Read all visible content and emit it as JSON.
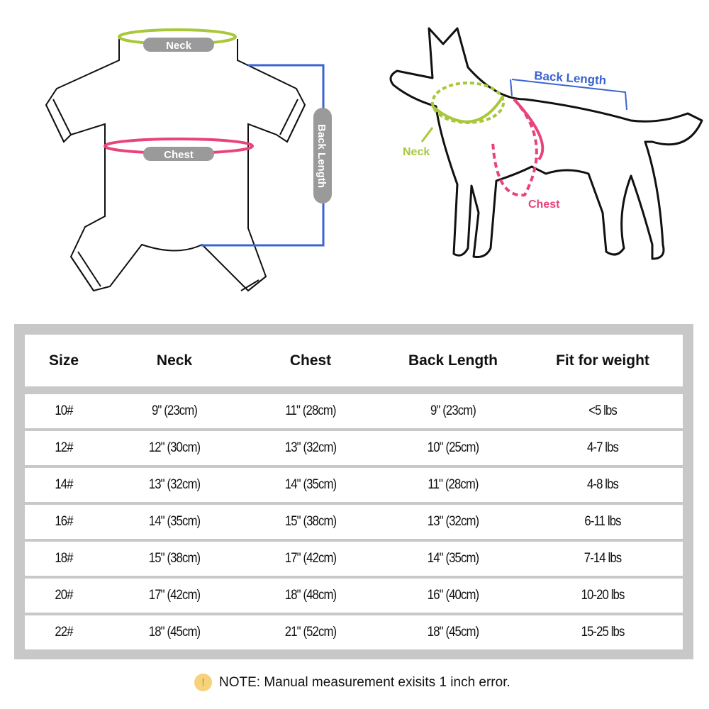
{
  "garment_labels": {
    "neck": "Neck",
    "chest": "Chest",
    "back_length": "Back Length"
  },
  "dog_labels": {
    "neck": "Neck",
    "chest": "Chest",
    "back_length": "Back Length"
  },
  "colors": {
    "neck": "#a8c83a",
    "chest": "#e8437a",
    "back_length": "#3b64d0",
    "label_pill": "#9a9a9a",
    "frame": "#c8c8c8"
  },
  "table": {
    "headers": [
      "Size",
      "Neck",
      "Chest",
      "Back Length",
      "Fit for weight"
    ],
    "rows": [
      [
        "10#",
        "9\" (23cm)",
        "11\" (28cm)",
        "9\" (23cm)",
        "<5 lbs"
      ],
      [
        "12#",
        "12\" (30cm)",
        "13\" (32cm)",
        "10\" (25cm)",
        "4-7 lbs"
      ],
      [
        "14#",
        "13\" (32cm)",
        "14\" (35cm)",
        "11\" (28cm)",
        "4-8  lbs"
      ],
      [
        "16#",
        "14\" (35cm)",
        "15\" (38cm)",
        "13\" (32cm)",
        "6-11  lbs"
      ],
      [
        "18#",
        "15\" (38cm)",
        "17\" (42cm)",
        "14\" (35cm)",
        "7-14  lbs"
      ],
      [
        "20#",
        "17\" (42cm)",
        "18\" (48cm)",
        "16\" (40cm)",
        "10-20 lbs"
      ],
      [
        "22#",
        "18\" (45cm)",
        "21\" (52cm)",
        "18\" (45cm)",
        "15-25 lbs"
      ]
    ]
  },
  "note": {
    "icon": "exclamation-icon",
    "glyph": "!",
    "text": "NOTE: Manual measurement exisits 1 inch error."
  }
}
